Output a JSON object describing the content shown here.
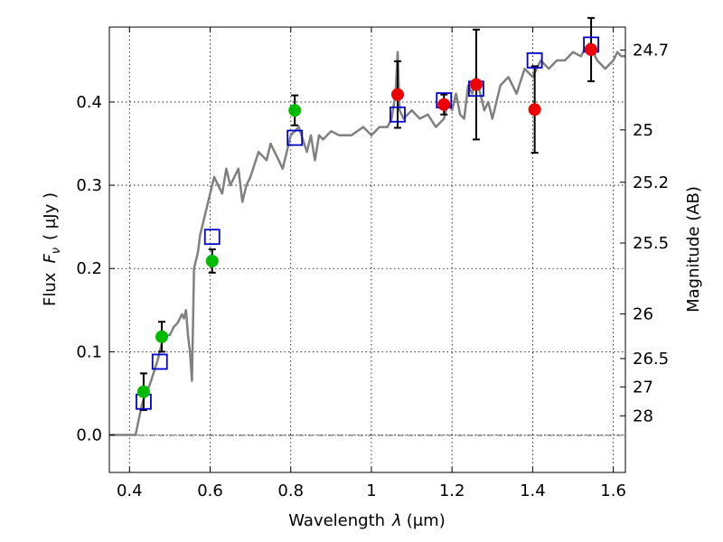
{
  "chart_data": {
    "type": "scatter",
    "title": "",
    "xlabel_text": "Wavelength",
    "xlabel_symbol": "λ",
    "xlabel_unit": "(μm)",
    "ylabel_text": "Flux",
    "ylabel_symbol": "F",
    "ylabel_subscript": "ν",
    "ylabel_unit": "( μJy )",
    "y2label": "Magnitude (AB)",
    "xlim": [
      0.35,
      1.63
    ],
    "ylim": [
      -0.045,
      0.49
    ],
    "grid": true,
    "x_ticks": [
      0.4,
      0.6,
      0.8,
      1.0,
      1.2,
      1.4,
      1.6
    ],
    "x_tick_labels": [
      "0.4",
      "0.6",
      "0.8",
      "1",
      "1.2",
      "1.4",
      "1.6"
    ],
    "y_ticks": [
      0.0,
      0.1,
      0.2,
      0.3,
      0.4
    ],
    "y_tick_labels": [
      "0.0",
      "0.1",
      "0.2",
      "0.3",
      "0.4"
    ],
    "y2_ticks": [
      {
        "flux": 0.4625,
        "label": "24.7"
      },
      {
        "flux": 0.3665,
        "label": "25"
      },
      {
        "flux": 0.3036,
        "label": "25.2"
      },
      {
        "flux": 0.2306,
        "label": "25.5"
      },
      {
        "flux": 0.1455,
        "label": "26"
      },
      {
        "flux": 0.0918,
        "label": "26.5"
      },
      {
        "flux": 0.0578,
        "label": "27"
      },
      {
        "flux": 0.023,
        "label": "28"
      }
    ],
    "colors": {
      "template": "#808080",
      "model_photometry": "#0000cc",
      "observed_optical": "#00bb00",
      "observed_nir": "#ee0000",
      "errorbar": "#000000"
    },
    "series": [
      {
        "name": "template-spectrum",
        "style": "line",
        "x": [
          0.35,
          0.415,
          0.43,
          0.44,
          0.45,
          0.46,
          0.47,
          0.48,
          0.49,
          0.5,
          0.51,
          0.52,
          0.53,
          0.535,
          0.54,
          0.545,
          0.55,
          0.555,
          0.56,
          0.57,
          0.575,
          0.58,
          0.59,
          0.6,
          0.61,
          0.62,
          0.63,
          0.64,
          0.65,
          0.66,
          0.67,
          0.68,
          0.69,
          0.7,
          0.72,
          0.74,
          0.75,
          0.76,
          0.77,
          0.78,
          0.79,
          0.8,
          0.82,
          0.84,
          0.85,
          0.86,
          0.87,
          0.88,
          0.9,
          0.92,
          0.95,
          0.98,
          1.0,
          1.02,
          1.04,
          1.05,
          1.06,
          1.065,
          1.07,
          1.08,
          1.1,
          1.12,
          1.14,
          1.16,
          1.18,
          1.19,
          1.2,
          1.21,
          1.22,
          1.23,
          1.24,
          1.25,
          1.26,
          1.27,
          1.28,
          1.29,
          1.3,
          1.32,
          1.34,
          1.36,
          1.38,
          1.4,
          1.42,
          1.44,
          1.46,
          1.48,
          1.5,
          1.52,
          1.53,
          1.54,
          1.55,
          1.56,
          1.58,
          1.6,
          1.61,
          1.62,
          1.63
        ],
        "y": [
          0.0,
          0.0,
          0.035,
          0.05,
          0.06,
          0.075,
          0.09,
          0.11,
          0.12,
          0.12,
          0.13,
          0.135,
          0.145,
          0.14,
          0.15,
          0.12,
          0.1,
          0.065,
          0.2,
          0.22,
          0.24,
          0.25,
          0.27,
          0.29,
          0.31,
          0.3,
          0.29,
          0.32,
          0.3,
          0.31,
          0.32,
          0.28,
          0.3,
          0.31,
          0.34,
          0.33,
          0.35,
          0.34,
          0.33,
          0.32,
          0.34,
          0.36,
          0.37,
          0.34,
          0.36,
          0.33,
          0.36,
          0.355,
          0.365,
          0.36,
          0.36,
          0.37,
          0.36,
          0.37,
          0.37,
          0.38,
          0.41,
          0.46,
          0.39,
          0.38,
          0.39,
          0.38,
          0.385,
          0.37,
          0.38,
          0.4,
          0.39,
          0.41,
          0.385,
          0.38,
          0.42,
          0.41,
          0.43,
          0.41,
          0.39,
          0.4,
          0.38,
          0.42,
          0.43,
          0.41,
          0.44,
          0.43,
          0.45,
          0.44,
          0.45,
          0.45,
          0.46,
          0.455,
          0.465,
          0.47,
          0.46,
          0.45,
          0.44,
          0.45,
          0.46,
          0.455,
          0.455
        ]
      },
      {
        "name": "model-photometry",
        "style": "open-square",
        "x": [
          0.435,
          0.475,
          0.605,
          0.81,
          1.065,
          1.18,
          1.26,
          1.405,
          1.545
        ],
        "y": [
          0.04,
          0.088,
          0.238,
          0.357,
          0.385,
          0.402,
          0.416,
          0.45,
          0.469
        ]
      },
      {
        "name": "observed-optical",
        "style": "filled-circle",
        "x": [
          0.435,
          0.48,
          0.605,
          0.81
        ],
        "y": [
          0.052,
          0.118,
          0.209,
          0.39
        ],
        "yerr": [
          0.022,
          0.018,
          0.014,
          0.018
        ]
      },
      {
        "name": "observed-nir",
        "style": "filled-circle",
        "x": [
          1.065,
          1.18,
          1.26,
          1.405,
          1.545
        ],
        "y": [
          0.409,
          0.397,
          0.421,
          0.391,
          0.463
        ],
        "yerr": [
          0.04,
          0.012,
          0.066,
          0.052,
          0.038
        ]
      }
    ]
  }
}
